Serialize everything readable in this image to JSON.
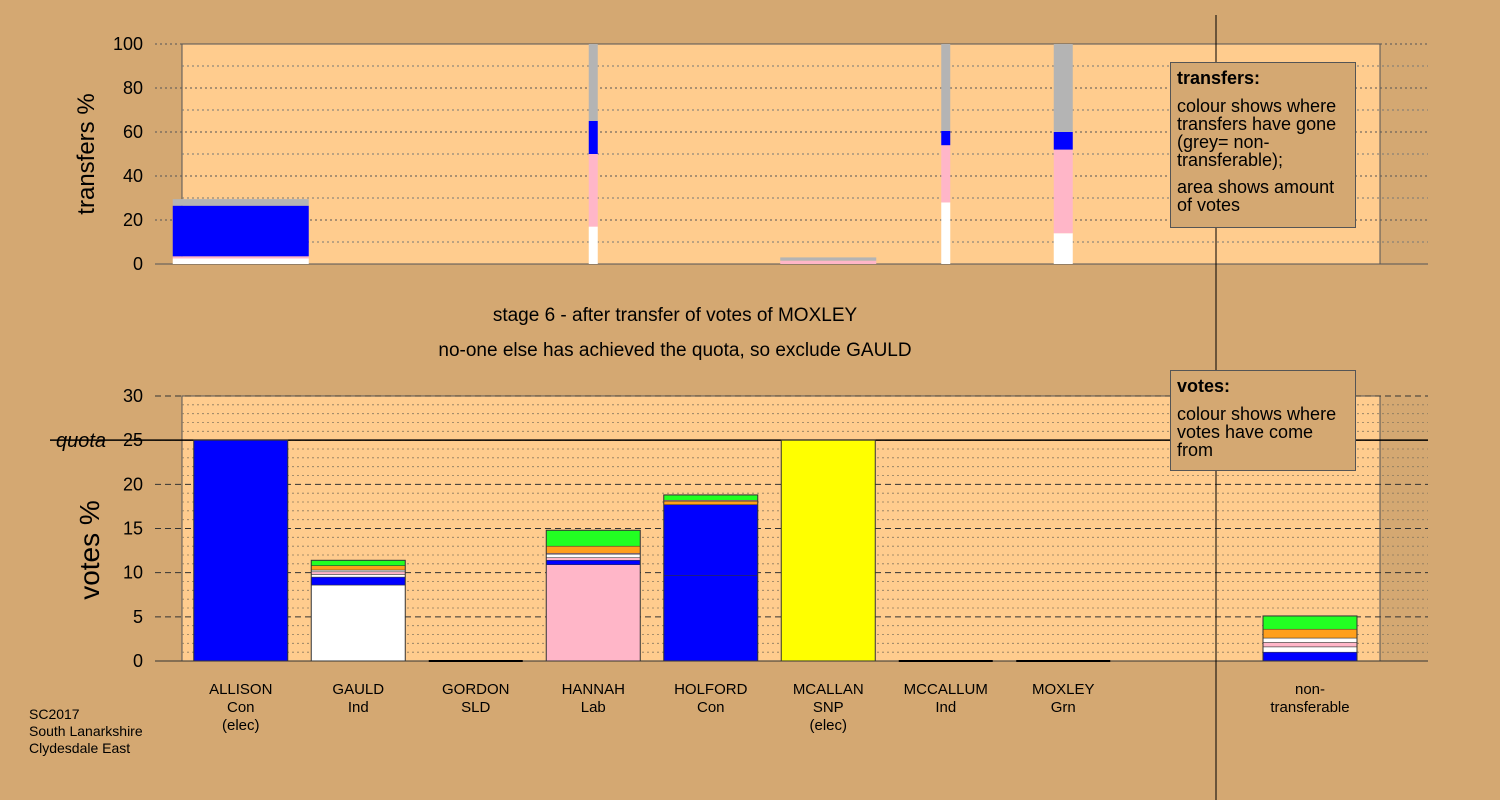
{
  "colors": {
    "background": "#d4a872",
    "plot_bg": "#ffcc8e",
    "Con": "#0000ff",
    "Ind": "#ffffff",
    "Lab": "#ffb6c8",
    "SNP": "#ffff00",
    "SLD": "#ff9f1c",
    "Grn": "#22ff22",
    "nontransferable": "#b4b4b4"
  },
  "header": {
    "stage_line": "stage 6 - after transfer of votes of MOXLEY",
    "decision_line": "no-one else has achieved the quota, so exclude GAULD"
  },
  "footer": {
    "line1": "SC2017",
    "line2": "South Lanarkshire",
    "line3": "Clydesdale East"
  },
  "legend_transfers": {
    "title": "transfers:",
    "text1": "colour shows where transfers have gone (grey= non-transferable);",
    "text2": "area shows amount of votes"
  },
  "legend_votes": {
    "title": "votes:",
    "text1": "colour shows where votes have come from"
  },
  "chart_data": [
    {
      "type": "bar",
      "stacked": true,
      "ylabel": "transfers %",
      "ylim": [
        0,
        100
      ],
      "yticks": [
        0,
        20,
        40,
        60,
        80,
        100
      ],
      "categories": [
        "ALLISON",
        "GAULD",
        "GORDON",
        "HANNAH",
        "HOLFORD",
        "MCALLAN",
        "MCCALLUM",
        "MOXLEY"
      ],
      "note": "",
      "bars": [
        {
          "category": "ALLISON",
          "width_share": 28,
          "segments": [
            {
              "party": "Ind",
              "value": 2.5
            },
            {
              "party": "Lab",
              "value": 1
            },
            {
              "party": "Con",
              "value": 23
            },
            {
              "party": "nontransferable",
              "value": 3
            }
          ]
        },
        {
          "category": "HANNAH",
          "width_share": 2,
          "segments": [
            {
              "party": "Ind",
              "value": 17
            },
            {
              "party": "Lab",
              "value": 33
            },
            {
              "party": "Con",
              "value": 15
            },
            {
              "party": "nontransferable",
              "value": 35
            }
          ]
        },
        {
          "category": "MCALLAN",
          "width_share": 20,
          "segments": [
            {
              "party": "Lab",
              "value": 1.5
            },
            {
              "party": "nontransferable",
              "value": 1.5
            }
          ]
        },
        {
          "category": "MCCALLUM",
          "width_share": 2,
          "segments": [
            {
              "party": "Ind",
              "value": 28
            },
            {
              "party": "Lab",
              "value": 26
            },
            {
              "party": "Con",
              "value": 6.5
            },
            {
              "party": "nontransferable",
              "value": 39.5
            }
          ]
        },
        {
          "category": "MOXLEY",
          "width_share": 4,
          "segments": [
            {
              "party": "Ind",
              "value": 14
            },
            {
              "party": "Lab",
              "value": 38
            },
            {
              "party": "Con",
              "value": 8
            },
            {
              "party": "nontransferable",
              "value": 40
            }
          ]
        }
      ]
    },
    {
      "type": "bar",
      "stacked": true,
      "ylabel": "votes %",
      "ylim": [
        0,
        30
      ],
      "yticks": [
        0,
        5,
        10,
        15,
        20,
        25,
        30
      ],
      "quota": 25,
      "quota_label": "quota",
      "candidates": [
        {
          "name": "ALLISON",
          "party": "Con",
          "status": "(elec)",
          "segments": [
            {
              "party": "Con",
              "value": 25
            }
          ]
        },
        {
          "name": "GAULD",
          "party": "Ind",
          "status": "",
          "segments": [
            {
              "party": "Ind",
              "value": 8.6
            },
            {
              "party": "Con",
              "value": 0.9
            },
            {
              "party": "Ind",
              "value": 0.3
            },
            {
              "party": "Lab",
              "value": 0.3
            },
            {
              "party": "Ind",
              "value": 0.2
            },
            {
              "party": "SLD",
              "value": 0.5
            },
            {
              "party": "Grn",
              "value": 0.6
            }
          ]
        },
        {
          "name": "GORDON",
          "party": "SLD",
          "status": "",
          "segments": []
        },
        {
          "name": "HANNAH",
          "party": "Lab",
          "status": "",
          "segments": [
            {
              "party": "Lab",
              "value": 10.9
            },
            {
              "party": "Con",
              "value": 0.5
            },
            {
              "party": "Lab",
              "value": 0.3
            },
            {
              "party": "Ind",
              "value": 0.4
            },
            {
              "party": "Lab",
              "value": 0.1
            },
            {
              "party": "SLD",
              "value": 0.8
            },
            {
              "party": "Grn",
              "value": 1.8
            }
          ]
        },
        {
          "name": "HOLFORD",
          "party": "Con",
          "status": "",
          "segments": [
            {
              "party": "Con",
              "value": 9.7
            },
            {
              "party": "Con",
              "value": 8.0
            },
            {
              "party": "SLD",
              "value": 0.4
            },
            {
              "party": "Lab",
              "value": 0.1
            },
            {
              "party": "Grn",
              "value": 0.6
            }
          ]
        },
        {
          "name": "MCALLAN",
          "party": "SNP",
          "status": "(elec)",
          "segments": [
            {
              "party": "SNP",
              "value": 25
            }
          ]
        },
        {
          "name": "MCCALLUM",
          "party": "Ind",
          "status": "",
          "segments": []
        },
        {
          "name": "MOXLEY",
          "party": "Grn",
          "status": "",
          "segments": []
        }
      ],
      "nontransferable": {
        "label1": "non-",
        "label2": "transferable",
        "segments": [
          {
            "party": "Con",
            "value": 1.0
          },
          {
            "party": "Ind",
            "value": 0.6
          },
          {
            "party": "Lab",
            "value": 0.5
          },
          {
            "party": "Ind",
            "value": 0.5
          },
          {
            "party": "SLD",
            "value": 1.0
          },
          {
            "party": "Grn",
            "value": 1.5
          }
        ]
      }
    }
  ]
}
